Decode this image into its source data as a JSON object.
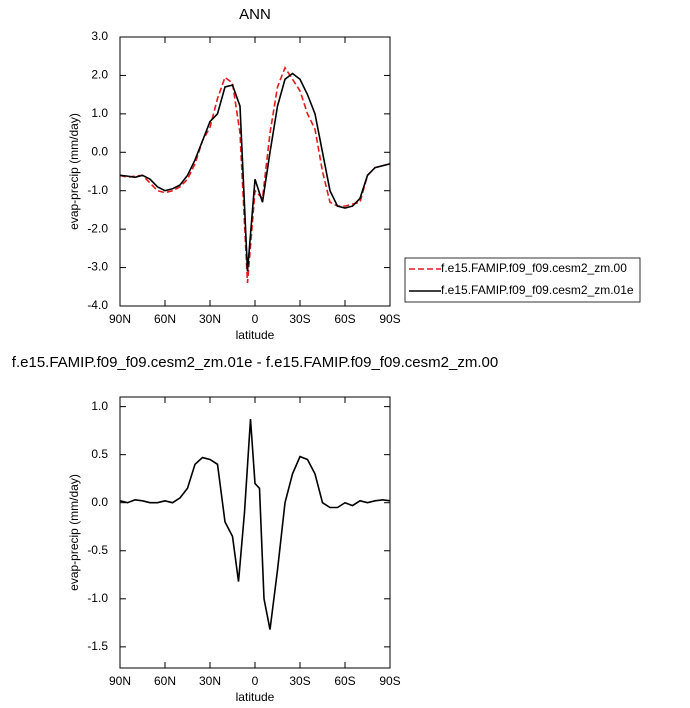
{
  "chart_data": [
    {
      "type": "line",
      "title": "ANN",
      "xlabel": "latitude",
      "ylabel": "evap-precip (mm/day)",
      "x": [
        90,
        85,
        80,
        75,
        70,
        65,
        60,
        55,
        50,
        45,
        40,
        35,
        30,
        25,
        20,
        15,
        10,
        5,
        0,
        -5,
        -10,
        -15,
        -20,
        -25,
        -30,
        -35,
        -40,
        -45,
        -50,
        -55,
        -60,
        -65,
        -70,
        -75,
        -80,
        -85,
        -90
      ],
      "series": [
        {
          "name": "f.e15.FAMIP.f09_f09.cesm2_zm.00",
          "color": "#e41a1c",
          "dash": true,
          "values": [
            -0.6,
            -0.65,
            -0.62,
            -0.6,
            -0.8,
            -1.0,
            -1.05,
            -1.0,
            -0.9,
            -0.7,
            -0.3,
            0.3,
            0.65,
            1.4,
            1.95,
            1.8,
            0.5,
            -3.4,
            -1.0,
            -1.2,
            0.5,
            1.7,
            2.2,
            1.9,
            1.6,
            1.0,
            0.6,
            -0.5,
            -1.3,
            -1.4,
            -1.4,
            -1.35,
            -1.3,
            -0.6,
            -0.4,
            -0.35,
            -0.3
          ]
        },
        {
          "name": "f.e15.FAMIP.f09_f09.cesm2_zm.01e",
          "color": "#000000",
          "dash": false,
          "values": [
            -0.6,
            -0.62,
            -0.65,
            -0.6,
            -0.7,
            -0.9,
            -1.0,
            -0.95,
            -0.85,
            -0.6,
            -0.2,
            0.3,
            0.8,
            1.0,
            1.7,
            1.75,
            1.2,
            -3.1,
            -0.7,
            -1.3,
            0.0,
            1.2,
            1.9,
            2.05,
            1.9,
            1.5,
            1.0,
            0.0,
            -1.0,
            -1.4,
            -1.45,
            -1.4,
            -1.2,
            -0.6,
            -0.4,
            -0.35,
            -0.3
          ]
        }
      ],
      "xlim": [
        90,
        -90
      ],
      "xticks": [
        {
          "value": 90,
          "label": "90N"
        },
        {
          "value": 60,
          "label": "60N"
        },
        {
          "value": 30,
          "label": "30N"
        },
        0,
        {
          "value": -30,
          "label": "30S"
        },
        {
          "value": -60,
          "label": "60S"
        },
        {
          "value": -90,
          "label": "90S"
        }
      ],
      "ylim": [
        -4,
        3
      ],
      "yticks": [
        {
          "value": -4,
          "label": "-4.0"
        },
        {
          "value": -3,
          "label": "-3.0"
        },
        {
          "value": -2,
          "label": "-2.0"
        },
        {
          "value": -1,
          "label": "-1.0"
        },
        {
          "value": 0,
          "label": "0.0"
        },
        {
          "value": 1,
          "label": "1.0"
        },
        {
          "value": 2,
          "label": "2.0"
        },
        {
          "value": 3,
          "label": "3.0"
        }
      ],
      "legend": "right"
    },
    {
      "type": "line",
      "title": "f.e15.FAMIP.f09_f09.cesm2_zm.01e - f.e15.FAMIP.f09_f09.cesm2_zm.00",
      "xlabel": "latitude",
      "ylabel": "evap-precip (mm/day)",
      "x": [
        90,
        85,
        80,
        75,
        70,
        65,
        60,
        55,
        50,
        45,
        40,
        35,
        30,
        25,
        20,
        15,
        11,
        7,
        3,
        0,
        -3,
        -6,
        -10,
        -15,
        -20,
        -25,
        -30,
        -35,
        -40,
        -45,
        -50,
        -55,
        -60,
        -65,
        -70,
        -75,
        -80,
        -85,
        -90
      ],
      "series": [
        {
          "color": "#000000",
          "dash": false,
          "values": [
            0.02,
            0.0,
            0.03,
            0.02,
            0.0,
            0.0,
            0.02,
            0.0,
            0.05,
            0.15,
            0.4,
            0.47,
            0.45,
            0.4,
            -0.2,
            -0.35,
            -0.82,
            -0.1,
            0.87,
            0.2,
            0.15,
            -1.0,
            -1.32,
            -0.7,
            0.0,
            0.3,
            0.48,
            0.45,
            0.3,
            0.0,
            -0.05,
            -0.05,
            0.0,
            -0.03,
            0.02,
            0.0,
            0.02,
            0.03,
            0.02
          ]
        }
      ],
      "xlim": [
        90,
        -90
      ],
      "xticks": [
        {
          "value": 90,
          "label": "90N"
        },
        {
          "value": 60,
          "label": "60N"
        },
        {
          "value": 30,
          "label": "30N"
        },
        0,
        {
          "value": -30,
          "label": "30S"
        },
        {
          "value": -60,
          "label": "60S"
        },
        {
          "value": -90,
          "label": "90S"
        }
      ],
      "ylim": [
        -1.72,
        1.1
      ],
      "yticks": [
        {
          "value": -1.5,
          "label": "-1.5"
        },
        {
          "value": -1,
          "label": "-1.0"
        },
        -0.5,
        {
          "value": 0,
          "label": "0.0"
        },
        0.5,
        {
          "value": 1,
          "label": "1.0"
        }
      ]
    }
  ]
}
